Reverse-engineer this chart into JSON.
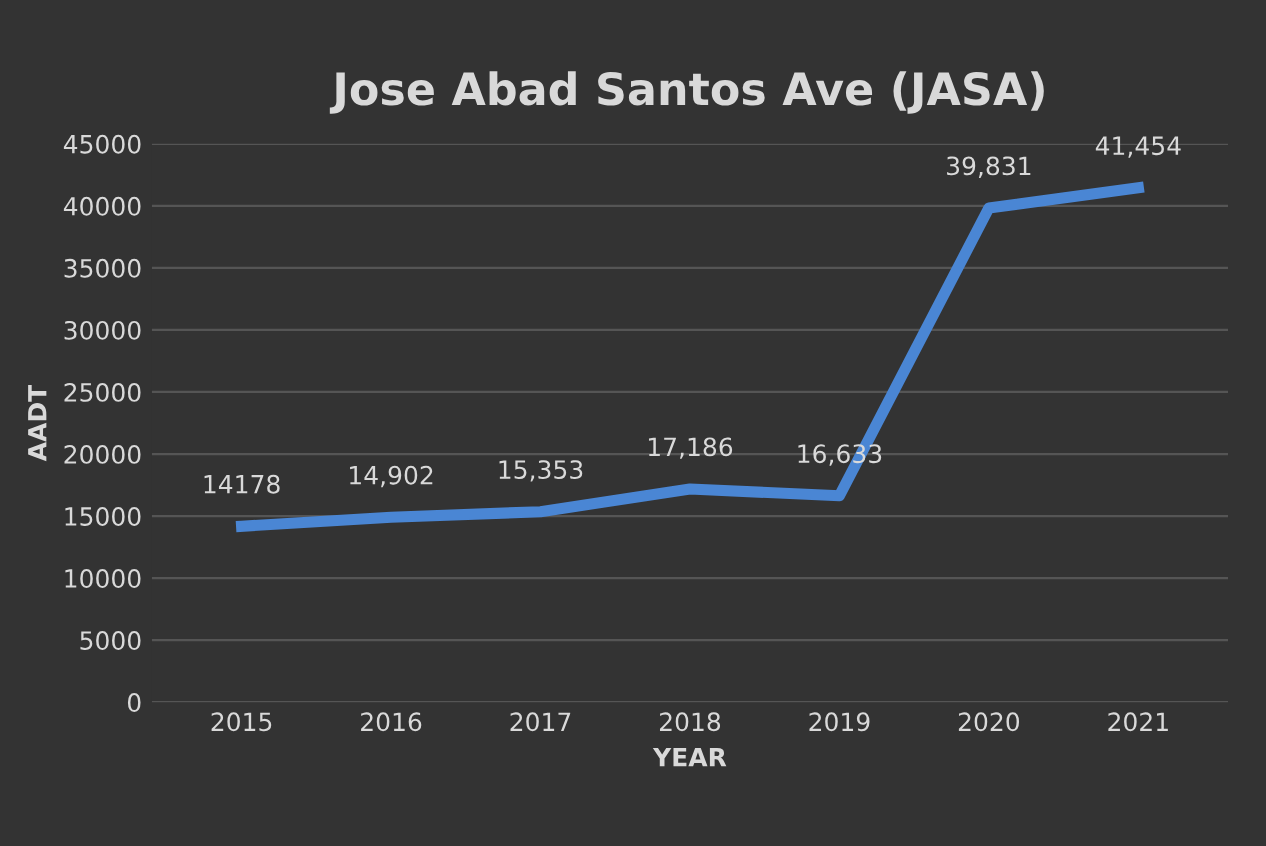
{
  "chart_data": {
    "type": "line",
    "title": "Jose Abad Santos Ave (JASA)",
    "xlabel": "YEAR",
    "ylabel": "AADT",
    "categories": [
      "2015",
      "2016",
      "2017",
      "2018",
      "2019",
      "2020",
      "2021"
    ],
    "series": [
      {
        "color": "#4a86d4",
        "values": [
          14178,
          14902,
          15353,
          17186,
          16633,
          39831,
          41454
        ],
        "value_labels": [
          "14178",
          "14,902",
          "15,353",
          "17,186",
          "16,633",
          "39,831",
          "41,454"
        ]
      }
    ],
    "ylim": [
      0,
      45000
    ],
    "yticks": [
      0,
      5000,
      10000,
      15000,
      20000,
      25000,
      30000,
      35000,
      40000,
      45000
    ],
    "grid": "y",
    "legend": false,
    "marker": "none",
    "line_style": "solid"
  }
}
